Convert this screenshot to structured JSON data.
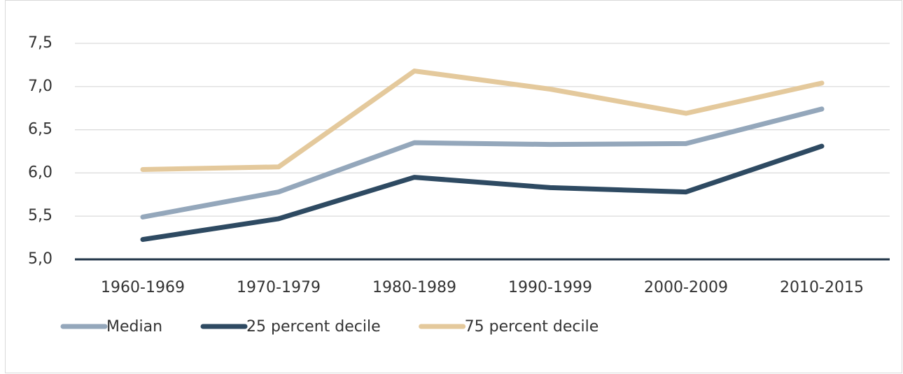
{
  "chart_data": {
    "type": "line",
    "categories": [
      "1960-1969",
      "1970-1979",
      "1980-1989",
      "1990-1999",
      "2000-2009",
      "2010-2015"
    ],
    "series": [
      {
        "name": "Median",
        "color": "#94a7bb",
        "values": [
          5.49,
          5.78,
          6.35,
          6.33,
          6.34,
          6.74
        ]
      },
      {
        "name": "25 percent decile",
        "color": "#2e4a62",
        "values": [
          5.23,
          5.47,
          5.95,
          5.83,
          5.78,
          6.31
        ]
      },
      {
        "name": "75 percent decile",
        "color": "#e4c99c",
        "values": [
          6.04,
          6.07,
          7.18,
          6.97,
          6.69,
          7.04
        ]
      }
    ],
    "ylim": [
      5.0,
      7.5
    ],
    "yticks": [
      {
        "value": 5.0,
        "label": "5,0"
      },
      {
        "value": 5.5,
        "label": "5,5"
      },
      {
        "value": 6.0,
        "label": "6,0"
      },
      {
        "value": 6.5,
        "label": "6,5"
      },
      {
        "value": 7.0,
        "label": "7,0"
      },
      {
        "value": 7.5,
        "label": "7,5"
      }
    ],
    "grid": true,
    "legend": "bottom-left"
  }
}
